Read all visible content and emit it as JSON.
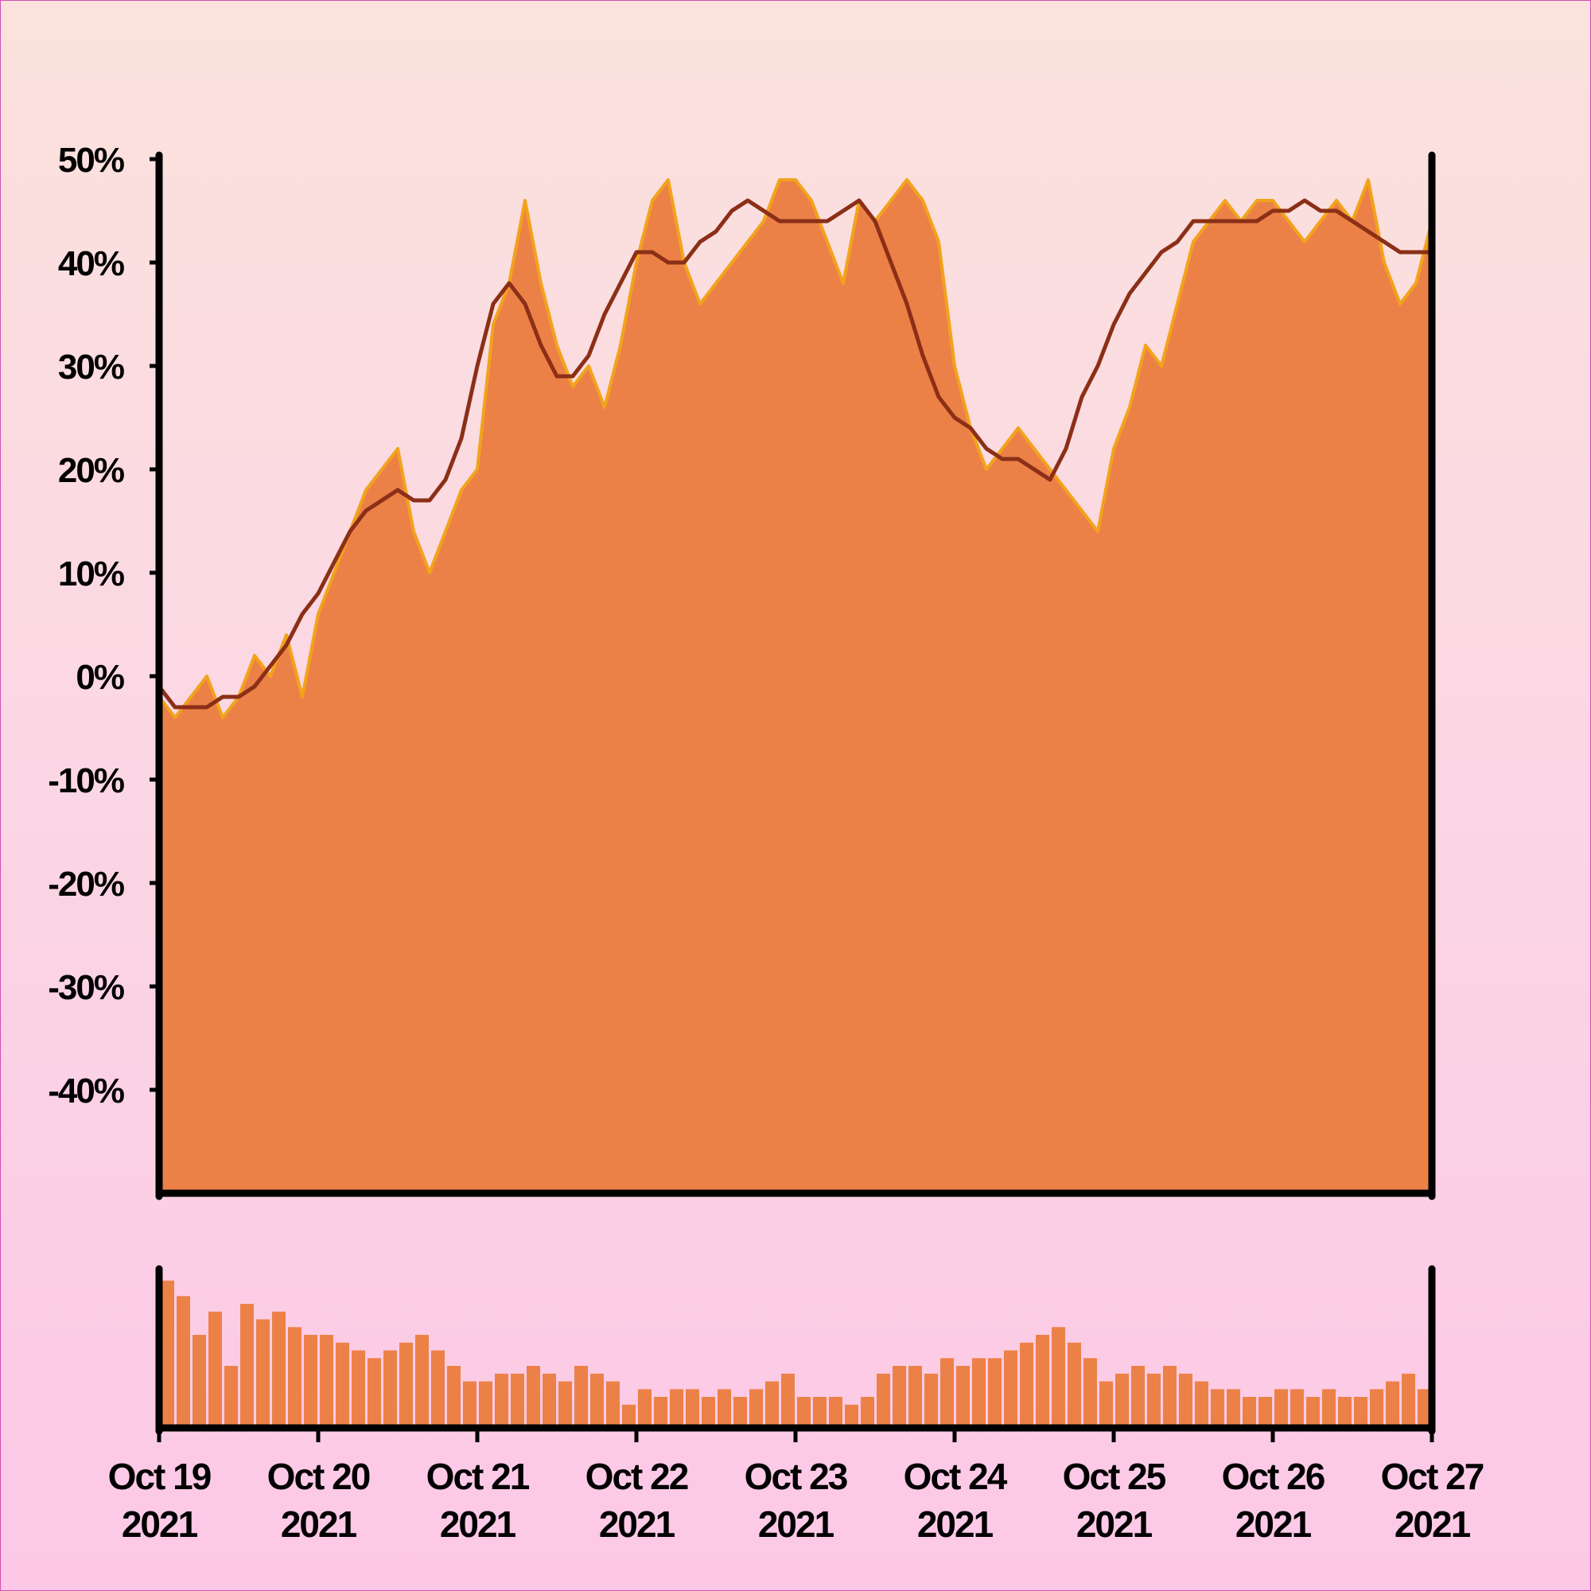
{
  "chart_data": {
    "type": "area",
    "title": "",
    "xlabel": "",
    "ylabel": "",
    "ylim": [
      -50,
      50
    ],
    "y_ticks": [
      "50%",
      "40%",
      "30%",
      "20%",
      "10%",
      "0%",
      "-10%",
      "-20%",
      "-30%",
      "-40%"
    ],
    "y_tick_values": [
      50,
      40,
      30,
      20,
      10,
      0,
      -10,
      -20,
      -30,
      -40
    ],
    "x_ticks": [
      {
        "line1": "Oct 19",
        "line2": "2021"
      },
      {
        "line1": "Oct 20",
        "line2": "2021"
      },
      {
        "line1": "Oct 21",
        "line2": "2021"
      },
      {
        "line1": "Oct 22",
        "line2": "2021"
      },
      {
        "line1": "Oct 23",
        "line2": "2021"
      },
      {
        "line1": "Oct 24",
        "line2": "2021"
      },
      {
        "line1": "Oct 25",
        "line2": "2021"
      },
      {
        "line1": "Oct 26",
        "line2": "2021"
      },
      {
        "line1": "Oct 27",
        "line2": "2021"
      }
    ],
    "xlim": [
      "2021-10-19",
      "2021-10-27"
    ],
    "grid": false,
    "series": [
      {
        "kind": "area",
        "x_days": [
          0,
          0.1,
          0.2,
          0.3,
          0.4,
          0.5,
          0.6,
          0.7,
          0.8,
          0.9,
          1.0,
          1.1,
          1.2,
          1.3,
          1.4,
          1.5,
          1.6,
          1.7,
          1.8,
          1.9,
          2.0,
          2.1,
          2.2,
          2.3,
          2.4,
          2.5,
          2.6,
          2.7,
          2.8,
          2.9,
          3.0,
          3.1,
          3.2,
          3.3,
          3.4,
          3.5,
          3.6,
          3.7,
          3.8,
          3.9,
          4.0,
          4.1,
          4.2,
          4.3,
          4.4,
          4.5,
          4.6,
          4.7,
          4.8,
          4.9,
          5.0,
          5.1,
          5.2,
          5.3,
          5.4,
          5.5,
          5.6,
          5.7,
          5.8,
          5.9,
          6.0,
          6.1,
          6.2,
          6.3,
          6.4,
          6.5,
          6.6,
          6.7,
          6.8,
          6.9,
          7.0,
          7.1,
          7.2,
          7.3,
          7.4,
          7.5,
          7.6,
          7.7,
          7.8,
          7.9,
          8.0
        ],
        "values": [
          -2,
          -4,
          -2,
          0,
          -4,
          -2,
          2,
          0,
          4,
          -2,
          6,
          10,
          14,
          18,
          20,
          22,
          14,
          10,
          14,
          18,
          20,
          34,
          38,
          46,
          38,
          32,
          28,
          30,
          26,
          32,
          40,
          46,
          48,
          40,
          36,
          38,
          40,
          42,
          44,
          48,
          48,
          46,
          42,
          38,
          46,
          44,
          46,
          48,
          46,
          42,
          30,
          24,
          20,
          22,
          24,
          22,
          20,
          18,
          16,
          14,
          22,
          26,
          32,
          30,
          36,
          42,
          44,
          46,
          44,
          46,
          46,
          44,
          42,
          44,
          46,
          44,
          48,
          40,
          36,
          38,
          44
        ]
      },
      {
        "kind": "line",
        "x_days": [
          0,
          0.1,
          0.2,
          0.3,
          0.4,
          0.5,
          0.6,
          0.7,
          0.8,
          0.9,
          1.0,
          1.1,
          1.2,
          1.3,
          1.4,
          1.5,
          1.6,
          1.7,
          1.8,
          1.9,
          2.0,
          2.1,
          2.2,
          2.3,
          2.4,
          2.5,
          2.6,
          2.7,
          2.8,
          2.9,
          3.0,
          3.1,
          3.2,
          3.3,
          3.4,
          3.5,
          3.6,
          3.7,
          3.8,
          3.9,
          4.0,
          4.1,
          4.2,
          4.3,
          4.4,
          4.5,
          4.6,
          4.7,
          4.8,
          4.9,
          5.0,
          5.1,
          5.2,
          5.3,
          5.4,
          5.5,
          5.6,
          5.7,
          5.8,
          5.9,
          6.0,
          6.1,
          6.2,
          6.3,
          6.4,
          6.5,
          6.6,
          6.7,
          6.8,
          6.9,
          7.0,
          7.1,
          7.2,
          7.3,
          7.4,
          7.5,
          7.6,
          7.7,
          7.8,
          7.9,
          8.0
        ],
        "values": [
          -1,
          -3,
          -3,
          -3,
          -2,
          -2,
          -1,
          1,
          3,
          6,
          8,
          11,
          14,
          16,
          17,
          18,
          17,
          17,
          19,
          23,
          30,
          36,
          38,
          36,
          32,
          29,
          29,
          31,
          35,
          38,
          41,
          41,
          40,
          40,
          42,
          43,
          45,
          46,
          45,
          44,
          44,
          44,
          44,
          45,
          46,
          44,
          40,
          36,
          31,
          27,
          25,
          24,
          22,
          21,
          21,
          20,
          19,
          22,
          27,
          30,
          34,
          37,
          39,
          41,
          42,
          44,
          44,
          44,
          44,
          44,
          45,
          45,
          46,
          45,
          45,
          44,
          43,
          42,
          41,
          41,
          41
        ]
      }
    ],
    "volume": {
      "kind": "bar",
      "x_days": [
        0,
        0.1,
        0.2,
        0.3,
        0.4,
        0.5,
        0.6,
        0.7,
        0.8,
        0.9,
        1.0,
        1.1,
        1.2,
        1.3,
        1.4,
        1.5,
        1.6,
        1.7,
        1.8,
        1.9,
        2.0,
        2.1,
        2.2,
        2.3,
        2.4,
        2.5,
        2.6,
        2.7,
        2.8,
        2.9,
        3.0,
        3.1,
        3.2,
        3.3,
        3.4,
        3.5,
        3.6,
        3.7,
        3.8,
        3.9,
        4.0,
        4.1,
        4.2,
        4.3,
        4.4,
        4.5,
        4.6,
        4.7,
        4.8,
        4.9,
        5.0,
        5.1,
        5.2,
        5.3,
        5.4,
        5.5,
        5.6,
        5.7,
        5.8,
        5.9,
        6.0,
        6.1,
        6.2,
        6.3,
        6.4,
        6.5,
        6.6,
        6.7,
        6.8,
        6.9,
        7.0,
        7.1,
        7.2,
        7.3,
        7.4,
        7.5,
        7.6,
        7.7,
        7.8,
        7.9
      ],
      "values": [
        0.95,
        0.85,
        0.6,
        0.75,
        0.4,
        0.8,
        0.7,
        0.75,
        0.65,
        0.6,
        0.6,
        0.55,
        0.5,
        0.45,
        0.5,
        0.55,
        0.6,
        0.5,
        0.4,
        0.3,
        0.3,
        0.35,
        0.35,
        0.4,
        0.35,
        0.3,
        0.4,
        0.35,
        0.3,
        0.15,
        0.25,
        0.2,
        0.25,
        0.25,
        0.2,
        0.25,
        0.2,
        0.25,
        0.3,
        0.35,
        0.2,
        0.2,
        0.2,
        0.15,
        0.2,
        0.35,
        0.4,
        0.4,
        0.35,
        0.45,
        0.4,
        0.45,
        0.45,
        0.5,
        0.55,
        0.6,
        0.65,
        0.55,
        0.45,
        0.3,
        0.35,
        0.4,
        0.35,
        0.4,
        0.35,
        0.3,
        0.25,
        0.25,
        0.2,
        0.2,
        0.25,
        0.25,
        0.2,
        0.25,
        0.2,
        0.2,
        0.25,
        0.3,
        0.35,
        0.25
      ]
    }
  },
  "colors": {
    "area": "#ec8147",
    "area_edge": "#f2a31c",
    "line": "#8b2f17",
    "volume": "#ec8147",
    "axis": "#000000"
  }
}
